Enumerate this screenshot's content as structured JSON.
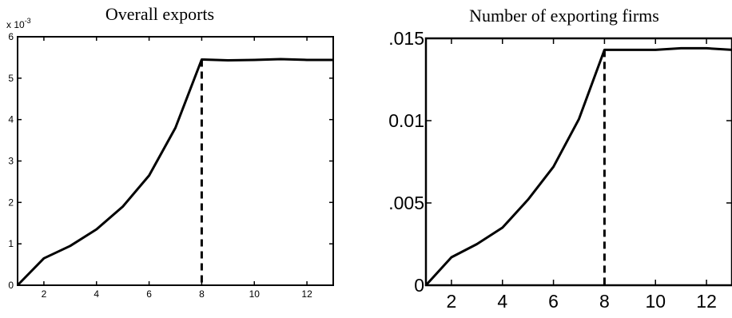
{
  "chart_data": [
    {
      "type": "line",
      "title": "Overall exports",
      "xlabel": "",
      "ylabel": "",
      "y_multiplier_label": "x 10",
      "y_multiplier_exponent": "-3",
      "xlim": [
        1,
        13
      ],
      "ylim": [
        0,
        6
      ],
      "xticks": [
        2,
        4,
        6,
        8,
        10,
        12
      ],
      "xtick_labels": [
        "2",
        "4",
        "6",
        "8",
        "10",
        "12"
      ],
      "yticks": [
        0,
        1,
        2,
        3,
        4,
        5,
        6
      ],
      "ytick_labels": [
        "0",
        "1",
        "2",
        "3",
        "4",
        "5",
        "6"
      ],
      "vline_x": 8,
      "series": [
        {
          "color": "#000000",
          "x": [
            1,
            2,
            3,
            4,
            5,
            6,
            7,
            8,
            9,
            10,
            11,
            12,
            13
          ],
          "y": [
            0,
            0.65,
            0.95,
            1.35,
            1.9,
            2.65,
            3.8,
            5.45,
            5.43,
            5.44,
            5.46,
            5.44,
            5.44
          ]
        },
        {
          "color": "#b22222",
          "x": [
            1,
            13
          ],
          "y": [
            0,
            0
          ]
        }
      ]
    },
    {
      "type": "line",
      "title": "Number of exporting firms",
      "xlabel": "",
      "ylabel": "",
      "xlim": [
        1,
        13
      ],
      "ylim": [
        0,
        0.015
      ],
      "xticks": [
        2,
        4,
        6,
        8,
        10,
        12
      ],
      "xtick_labels": [
        "2",
        "4",
        "6",
        "8",
        "10",
        "12"
      ],
      "yticks": [
        0,
        0.005,
        0.01,
        0.015
      ],
      "ytick_labels": [
        "0",
        ".005",
        "0.01",
        ".015"
      ],
      "vline_x": 8,
      "series": [
        {
          "color": "#000000",
          "x": [
            1,
            2,
            3,
            4,
            5,
            6,
            7,
            8,
            9,
            10,
            11,
            12,
            13
          ],
          "y": [
            0,
            0.0017,
            0.0025,
            0.0035,
            0.0052,
            0.0072,
            0.0101,
            0.0143,
            0.0143,
            0.0143,
            0.0144,
            0.0144,
            0.0143
          ]
        },
        {
          "color": "#b22222",
          "x": [
            1,
            13
          ],
          "y": [
            0,
            0
          ]
        }
      ]
    }
  ]
}
